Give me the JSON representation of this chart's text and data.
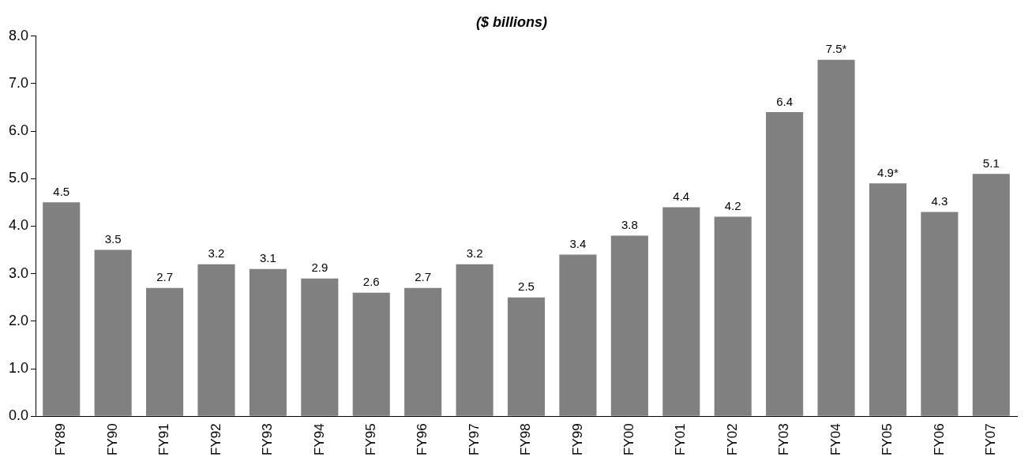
{
  "chart_data": {
    "type": "bar",
    "title": "($ billions)",
    "categories": [
      "FY89",
      "FY90",
      "FY91",
      "FY92",
      "FY93",
      "FY94",
      "FY95",
      "FY96",
      "FY97",
      "FY98",
      "FY99",
      "FY00",
      "FY01",
      "FY02",
      "FY03",
      "FY04",
      "FY05",
      "FY06",
      "FY07"
    ],
    "values": [
      4.5,
      3.5,
      2.7,
      3.2,
      3.1,
      2.9,
      2.6,
      2.7,
      3.2,
      2.5,
      3.4,
      3.8,
      4.4,
      4.2,
      6.4,
      7.5,
      4.9,
      4.3,
      5.1
    ],
    "value_labels": [
      "4.5",
      "3.5",
      "2.7",
      "3.2",
      "3.1",
      "2.9",
      "2.6",
      "2.7",
      "3.2",
      "2.5",
      "3.4",
      "3.8",
      "4.4",
      "4.2",
      "6.4",
      "7.5*",
      "4.9*",
      "4.3",
      "5.1"
    ],
    "color": "#808080",
    "ylim": [
      0,
      8
    ],
    "yticks": [
      {
        "value": 0,
        "label": "0.0"
      },
      {
        "value": 1,
        "label": "1.0"
      },
      {
        "value": 2,
        "label": "2.0"
      },
      {
        "value": 3,
        "label": "3.0"
      },
      {
        "value": 4,
        "label": "4.0"
      },
      {
        "value": 5,
        "label": "5.0"
      },
      {
        "value": 6,
        "label": "6.0"
      },
      {
        "value": 7,
        "label": "7.0"
      },
      {
        "value": 8,
        "label": "8.0"
      }
    ],
    "grid": false,
    "legend": false
  }
}
